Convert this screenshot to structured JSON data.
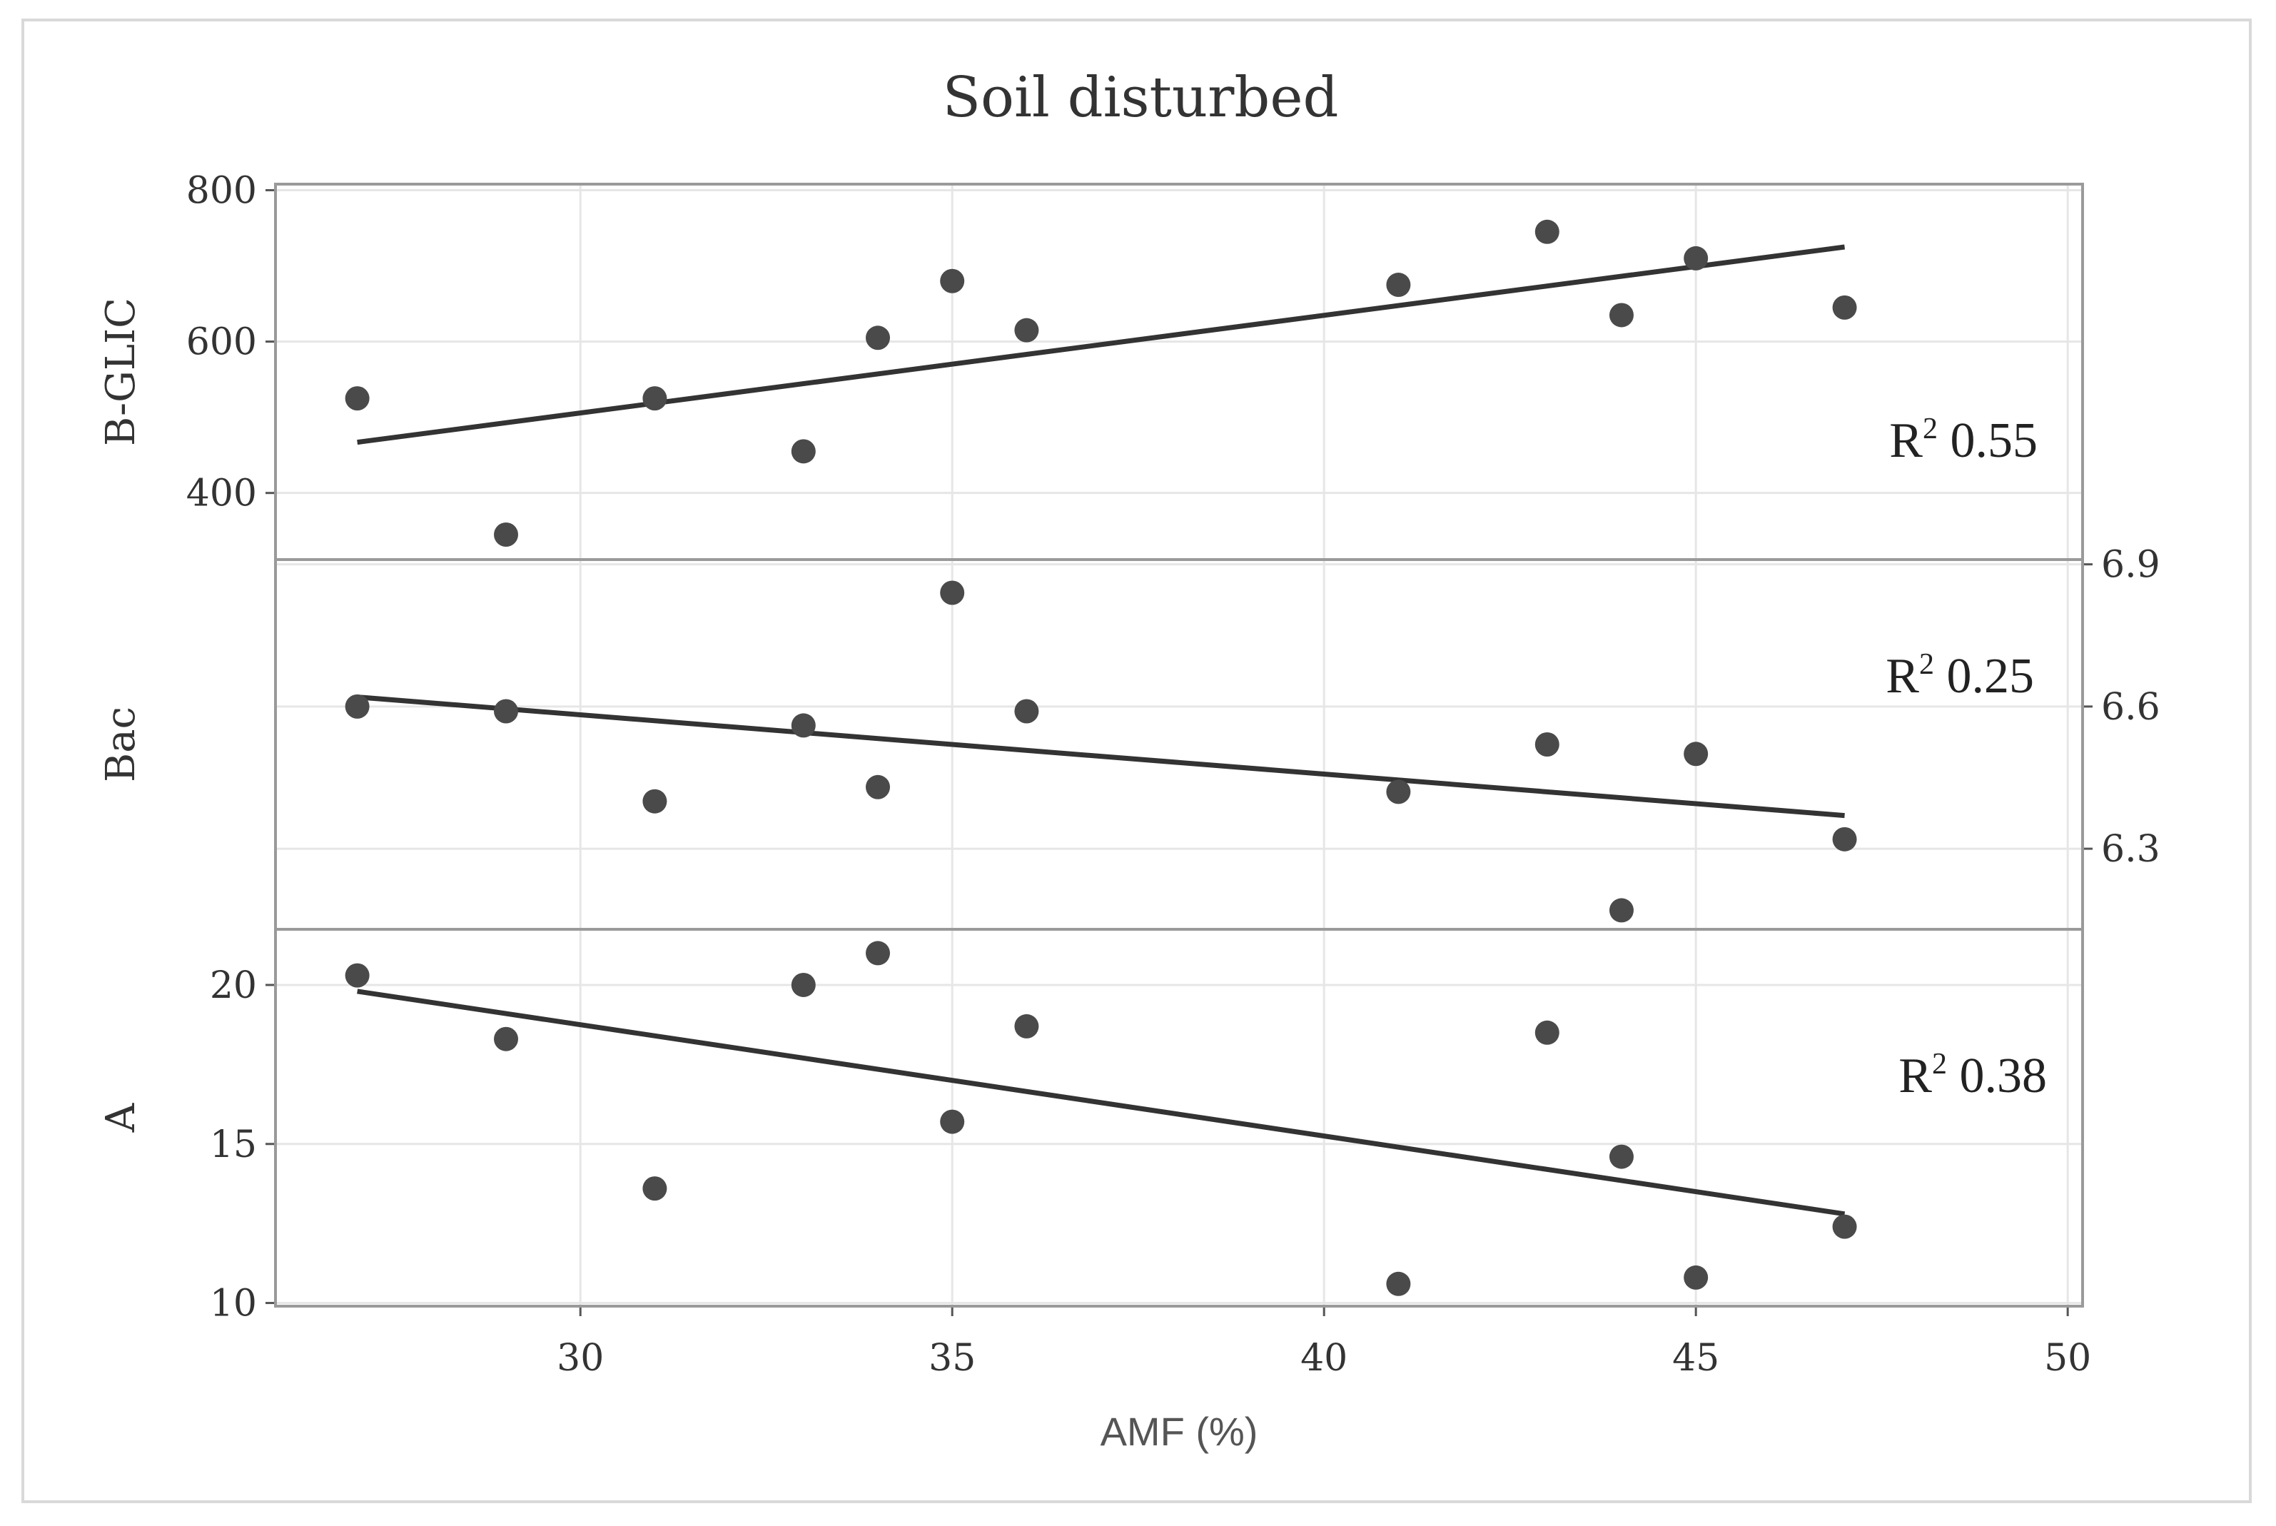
{
  "chart_data": {
    "type": "scatter",
    "title": "Soil disturbed",
    "xlabel": "AMF (%)",
    "x_ticks": [
      "30",
      "35",
      "40",
      "45",
      "50"
    ],
    "xlim": [
      25.9,
      50.2
    ],
    "grid": true,
    "panels": [
      {
        "ylabel": "B-GLIC",
        "axis_side": "left",
        "ylim": [
          312,
          808
        ],
        "y_ticks": [
          "400",
          "600",
          "800"
        ],
        "r2_prefix": "R",
        "r2_sup": "2",
        "r2_value": "0.55",
        "r2_position": "right",
        "points": [
          {
            "x": 27,
            "y": 525
          },
          {
            "x": 29,
            "y": 345
          },
          {
            "x": 31,
            "y": 525
          },
          {
            "x": 33,
            "y": 455
          },
          {
            "x": 34,
            "y": 605
          },
          {
            "x": 35,
            "y": 680
          },
          {
            "x": 36,
            "y": 615
          },
          {
            "x": 41,
            "y": 675
          },
          {
            "x": 43,
            "y": 745
          },
          {
            "x": 44,
            "y": 635
          },
          {
            "x": 45,
            "y": 710
          },
          {
            "x": 47,
            "y": 645
          }
        ],
        "fit_line": {
          "x": [
            27,
            47
          ],
          "y": [
            467,
            725
          ]
        }
      },
      {
        "ylabel": "Bac",
        "axis_side": "right",
        "ylim": [
          6.13,
          6.91
        ],
        "y_ticks": [
          "6.3",
          "6.6",
          "6.9"
        ],
        "r2_prefix": "R",
        "r2_sup": "2",
        "r2_value": "0.25",
        "r2_position": "top-right",
        "points": [
          {
            "x": 27,
            "y": 6.6
          },
          {
            "x": 29,
            "y": 6.59
          },
          {
            "x": 31,
            "y": 6.4
          },
          {
            "x": 33,
            "y": 6.56
          },
          {
            "x": 34,
            "y": 6.43
          },
          {
            "x": 35,
            "y": 6.84
          },
          {
            "x": 36,
            "y": 6.59
          },
          {
            "x": 41,
            "y": 6.42
          },
          {
            "x": 43,
            "y": 6.52
          },
          {
            "x": 44,
            "y": 6.17
          },
          {
            "x": 45,
            "y": 6.5
          },
          {
            "x": 47,
            "y": 6.32
          }
        ],
        "fit_line": {
          "x": [
            27,
            47
          ],
          "y": [
            6.62,
            6.37
          ]
        }
      },
      {
        "ylabel": "A",
        "axis_side": "left",
        "ylim": [
          9.9,
          21.75
        ],
        "y_ticks": [
          "10",
          "15",
          "20"
        ],
        "r2_prefix": "R",
        "r2_sup": "2",
        "r2_value": "0.38",
        "r2_position": "right",
        "points": [
          {
            "x": 27,
            "y": 20.3
          },
          {
            "x": 29,
            "y": 18.3
          },
          {
            "x": 31,
            "y": 13.6
          },
          {
            "x": 33,
            "y": 20.0
          },
          {
            "x": 34,
            "y": 21.0
          },
          {
            "x": 35,
            "y": 15.7
          },
          {
            "x": 36,
            "y": 18.7
          },
          {
            "x": 41,
            "y": 10.6
          },
          {
            "x": 43,
            "y": 18.5
          },
          {
            "x": 44,
            "y": 14.6
          },
          {
            "x": 45,
            "y": 10.8
          },
          {
            "x": 47,
            "y": 12.4
          }
        ],
        "fit_line": {
          "x": [
            27,
            47
          ],
          "y": [
            19.8,
            12.8
          ]
        }
      }
    ]
  }
}
